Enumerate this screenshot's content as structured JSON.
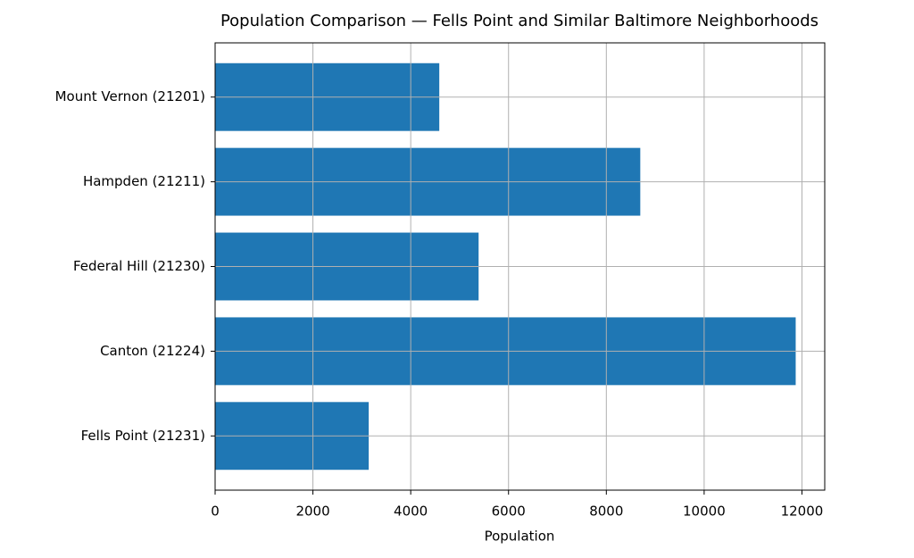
{
  "chart_data": {
    "type": "barh",
    "title": "Population Comparison — Fells Point and Similar Baltimore Neighborhoods",
    "x_label": "Population",
    "categories": [
      "Fells Point (21231)",
      "Canton (21224)",
      "Federal Hill (21230)",
      "Hampden (21211)",
      "Mount Vernon (21201)"
    ],
    "values": [
      3141,
      11872,
      5388,
      8694,
      4584
    ],
    "color": "#1f77b4",
    "xlim": [
      0,
      12466
    ],
    "xticks": [
      0,
      2000,
      4000,
      6000,
      8000,
      10000,
      12000
    ],
    "grid": true
  }
}
